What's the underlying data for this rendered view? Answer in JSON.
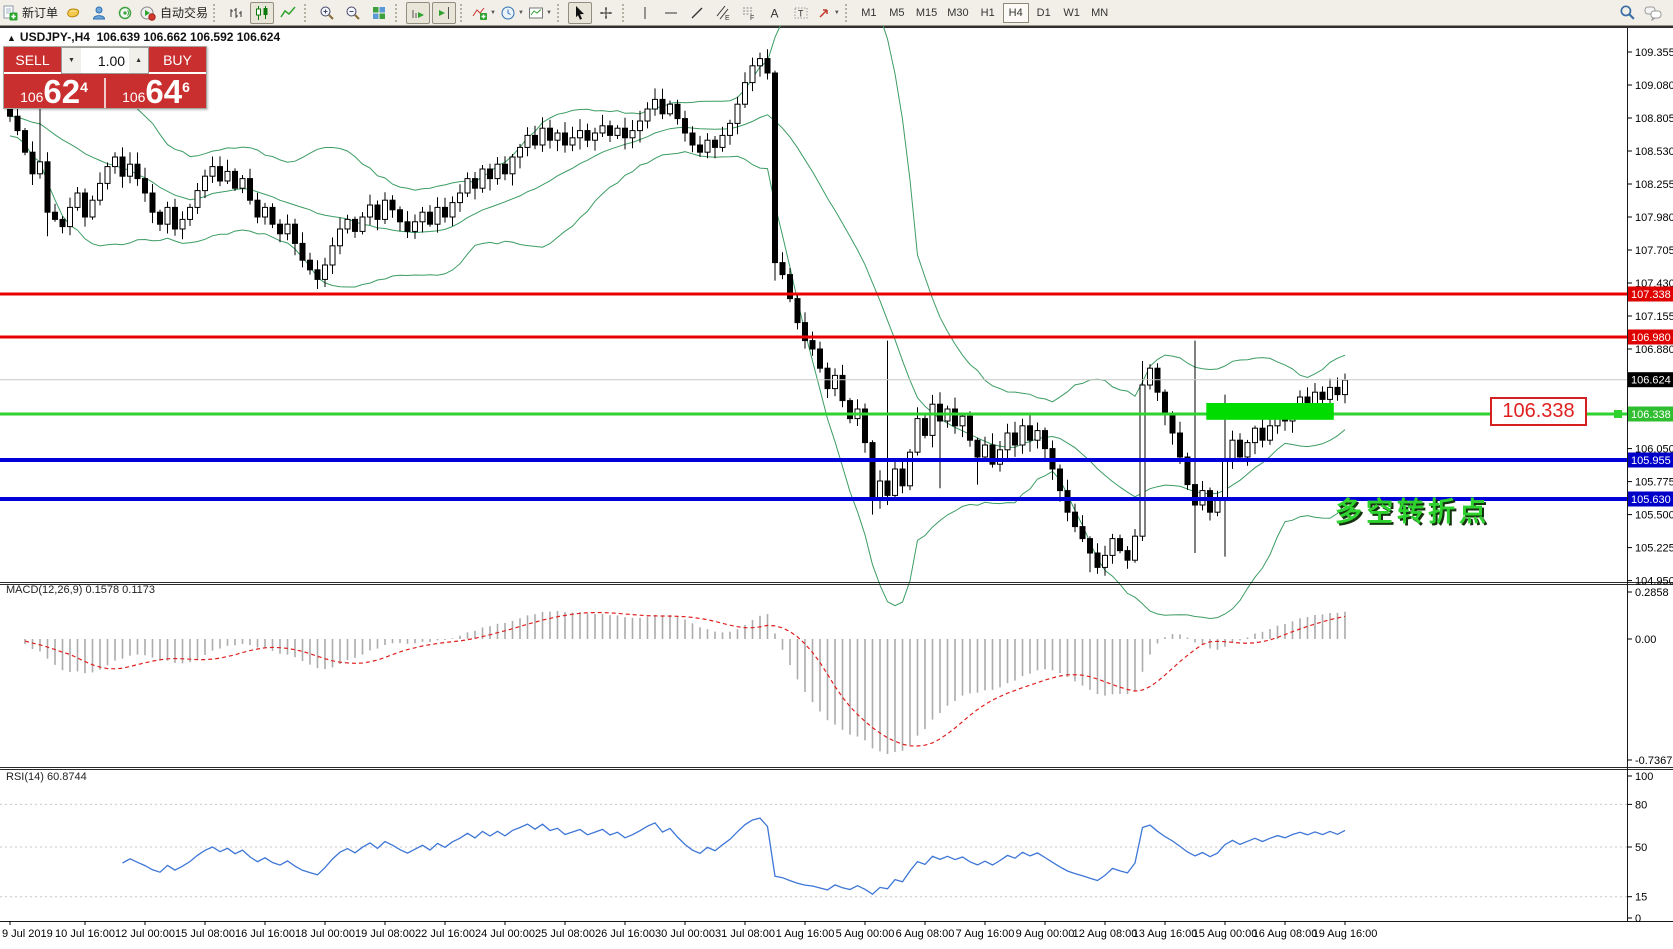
{
  "toolbar": {
    "new_order": "新订单",
    "auto_trading": "自动交易",
    "timeframes": [
      "M1",
      "M5",
      "M15",
      "M30",
      "H1",
      "H4",
      "D1",
      "W1",
      "MN"
    ],
    "active_timeframe": "H4",
    "channel_letter": "E",
    "fibo_letter": "F",
    "text_letter": "A",
    "label_letter": "T"
  },
  "chart": {
    "collapse_arrow": "▲",
    "title": "USDJPY-,H4",
    "ohlc": "106.639 106.662 106.592 106.624"
  },
  "trade_panel": {
    "sell_label": "SELL",
    "buy_label": "BUY",
    "volume": "1.00",
    "stepper_down": "▼",
    "stepper_up": "▲",
    "sell_price_small": "106",
    "sell_price_big": "62",
    "sell_price_sup": "4",
    "buy_price_small": "106",
    "buy_price_big": "64",
    "buy_price_sup": "6"
  },
  "annotations": {
    "price_box": "106.338",
    "turning_point": "多空转折点"
  },
  "indicators": {
    "macd_label": "MACD(12,26,9) 0.1578 0.1173",
    "rsi_label": "RSI(14) 60.8744"
  },
  "axes": {
    "price_ticks": [
      "109.355",
      "109.080",
      "108.805",
      "108.530",
      "108.255",
      "107.980",
      "107.705",
      "107.430",
      "107.155",
      "106.880",
      "106.050",
      "105.775",
      "105.500",
      "105.225",
      "104.950"
    ],
    "price_tags": [
      {
        "text": "107.338",
        "bg": "#DF0000"
      },
      {
        "text": "106.980",
        "bg": "#DF0000"
      },
      {
        "text": "106.624",
        "bg": "#000000"
      },
      {
        "text": "106.338",
        "bg": "#2FBE2F"
      },
      {
        "text": "105.955",
        "bg": "#0000C8"
      },
      {
        "text": "105.630",
        "bg": "#0000C8"
      }
    ],
    "macd_ticks": [
      "0.2858",
      "0.00",
      "-0.7367"
    ],
    "rsi_ticks": [
      "100",
      "80",
      "50",
      "15",
      "0"
    ],
    "time_labels": [
      [
        0,
        "9 Jul 2019"
      ],
      [
        10,
        "10 Jul 16:00"
      ],
      [
        18,
        "12 Jul 00:00"
      ],
      [
        26,
        "15 Jul 08:00"
      ],
      [
        34,
        "16 Jul 16:00"
      ],
      [
        42,
        "18 Jul 00:00"
      ],
      [
        50,
        "19 Jul 08:00"
      ],
      [
        58,
        "22 Jul 16:00"
      ],
      [
        66,
        "24 Jul 00:00"
      ],
      [
        74,
        "25 Jul 08:00"
      ],
      [
        82,
        "26 Jul 16:00"
      ],
      [
        90,
        "30 Jul 00:00"
      ],
      [
        98,
        "31 Jul 08:00"
      ],
      [
        106,
        "1 Aug 16:00"
      ],
      [
        114,
        "5 Aug 00:00"
      ],
      [
        122,
        "6 Aug 08:00"
      ],
      [
        130,
        "7 Aug 16:00"
      ],
      [
        138,
        "9 Aug 00:00"
      ],
      [
        146,
        "12 Aug 08:00"
      ],
      [
        154,
        "13 Aug 16:00"
      ],
      [
        162,
        "15 Aug 00:00"
      ],
      [
        170,
        "16 Aug 08:00"
      ],
      [
        178,
        "19 Aug 16:00"
      ]
    ]
  },
  "chart_data": {
    "type": "candlestick",
    "symbol": "USDJPY-",
    "timeframe": "H4",
    "price_range": [
      104.955,
      109.555
    ],
    "first_open": 108.88,
    "closes": [
      108.82,
      108.7,
      108.52,
      108.34,
      108.44,
      108.02,
      107.96,
      107.9,
      108.06,
      108.18,
      107.98,
      108.12,
      108.26,
      108.4,
      108.48,
      108.32,
      108.42,
      108.3,
      108.18,
      108.02,
      107.92,
      108.06,
      107.88,
      107.96,
      108.06,
      108.2,
      108.32,
      108.4,
      108.28,
      108.36,
      108.22,
      108.3,
      108.12,
      107.98,
      108.06,
      107.92,
      107.84,
      107.92,
      107.76,
      107.62,
      107.54,
      107.46,
      107.58,
      107.74,
      107.88,
      107.96,
      107.86,
      107.98,
      108.08,
      107.96,
      108.12,
      108.04,
      107.94,
      107.86,
      107.94,
      108.02,
      107.92,
      108.06,
      107.98,
      108.1,
      108.18,
      108.3,
      108.22,
      108.38,
      108.3,
      108.42,
      108.34,
      108.48,
      108.56,
      108.66,
      108.58,
      108.72,
      108.62,
      108.68,
      108.58,
      108.64,
      108.7,
      108.62,
      108.68,
      108.74,
      108.66,
      108.72,
      108.64,
      108.7,
      108.78,
      108.88,
      108.96,
      108.84,
      108.92,
      108.8,
      108.68,
      108.58,
      108.52,
      108.62,
      108.56,
      108.66,
      108.76,
      108.92,
      109.1,
      109.24,
      109.3,
      109.18,
      107.6,
      107.5,
      107.3,
      107.1,
      106.95,
      106.88,
      106.72,
      106.55,
      106.66,
      106.45,
      106.3,
      106.38,
      106.1,
      105.62,
      105.78,
      105.66,
      105.88,
      105.74,
      106.02,
      106.3,
      106.16,
      106.42,
      106.28,
      106.38,
      106.24,
      106.32,
      106.12,
      105.98,
      106.08,
      105.92,
      106.04,
      106.18,
      106.08,
      106.24,
      106.12,
      106.2,
      106.05,
      105.88,
      105.7,
      105.52,
      105.4,
      105.3,
      105.18,
      105.06,
      105.16,
      105.3,
      105.2,
      105.12,
      105.32,
      106.58,
      106.72,
      106.52,
      106.34,
      106.18,
      105.98,
      105.75,
      105.58,
      105.7,
      105.52,
      105.64,
      105.95,
      106.12,
      105.98,
      106.1,
      106.22,
      106.12,
      106.24,
      106.34,
      106.28,
      106.4,
      106.48,
      106.42,
      106.52,
      106.46,
      106.56,
      106.5,
      106.62
    ],
    "wick_overrides": {
      "4": [
        108.9,
        108.3
      ],
      "5": [
        108.52,
        107.82
      ],
      "41": [
        107.62,
        107.38
      ],
      "100": [
        109.35,
        109.15
      ],
      "102": [
        109.2,
        107.45
      ],
      "115": [
        106.12,
        105.5
      ],
      "117": [
        106.95,
        105.58
      ],
      "124": [
        106.52,
        105.72
      ],
      "129": [
        106.14,
        105.75
      ],
      "144": [
        105.32,
        105.02
      ],
      "146": [
        105.24,
        104.99
      ],
      "151": [
        106.78,
        105.28
      ],
      "158": [
        106.95,
        105.18
      ],
      "162": [
        106.5,
        105.15
      ]
    },
    "levels": [
      {
        "price": 107.338,
        "color": "#E80000",
        "width": 3
      },
      {
        "price": 106.98,
        "color": "#E80000",
        "width": 3
      },
      {
        "price": 106.624,
        "color": "#C8C8C8",
        "width": 1
      },
      {
        "price": 106.338,
        "color": "#2FD32F",
        "width": 3
      },
      {
        "price": 105.955,
        "color": "#0000D8",
        "width": 4
      },
      {
        "price": 105.63,
        "color": "#0000D8",
        "width": 4
      }
    ],
    "zone": {
      "bar_start": 159.5,
      "bar_end": 176.5,
      "price_top": 106.43,
      "price_bottom": 106.29,
      "color": "#00DC00"
    },
    "bollinger": {
      "period": 20,
      "deviation": 2,
      "color": "#3C9C64"
    },
    "macd": {
      "fast": 12,
      "slow": 26,
      "signal": 9,
      "hist_color": "#ACACAC",
      "signal_color": "#E02020",
      "range": [
        -0.7367,
        0.2858
      ]
    },
    "rsi": {
      "period": 14,
      "color": "#3E76D6",
      "levels": [
        80,
        50,
        15
      ],
      "range": [
        0,
        100
      ]
    }
  }
}
